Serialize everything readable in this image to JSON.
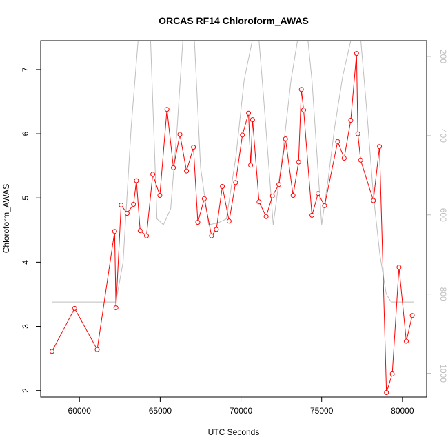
{
  "chart_data": {
    "type": "line",
    "title": "ORCAS RF14 Chloroform_AWAS",
    "xlabel": "UTC Seconds",
    "ylabel": "Chloroform_AWAS",
    "xlim": [
      57600,
      81500
    ],
    "ylim": [
      1.9,
      7.45
    ],
    "xticks": [
      60000,
      65000,
      70000,
      75000,
      80000
    ],
    "yticks": [
      2,
      3,
      4,
      5,
      6,
      7
    ],
    "y2lim": [
      1060,
      160
    ],
    "y2ticks": [
      200,
      400,
      600,
      800,
      1000
    ],
    "grid": false,
    "series": [
      {
        "role": "primary",
        "color": "#ff0000",
        "markers": "open-circle",
        "x": [
          58300,
          59700,
          61100,
          62180,
          62260,
          62580,
          62950,
          63350,
          63530,
          63760,
          64150,
          64540,
          64980,
          65420,
          65820,
          66220,
          66630,
          67060,
          67330,
          67730,
          68180,
          68480,
          68850,
          69270,
          69670,
          70090,
          70470,
          70600,
          70720,
          71120,
          71560,
          71950,
          72350,
          72760,
          73230,
          73570,
          73740,
          73880,
          74400,
          74780,
          75180,
          75990,
          76390,
          76800,
          77160,
          77240,
          77410,
          78200,
          78580,
          79010,
          79370,
          79790,
          80240,
          80610
        ],
        "values": [
          2.61,
          3.28,
          2.64,
          4.48,
          3.29,
          4.89,
          4.76,
          4.9,
          5.27,
          4.49,
          4.41,
          5.37,
          5.04,
          6.38,
          5.47,
          5.99,
          5.42,
          5.79,
          4.62,
          4.99,
          4.41,
          4.51,
          5.18,
          4.64,
          5.24,
          5.98,
          6.32,
          5.51,
          6.22,
          4.94,
          4.71,
          5.03,
          5.21,
          5.92,
          5.04,
          5.56,
          6.69,
          6.37,
          4.73,
          5.07,
          4.88,
          5.88,
          5.62,
          6.21,
          7.25,
          6.0,
          5.59,
          4.96,
          5.8,
          1.97,
          2.26,
          3.92,
          2.77,
          3.17
        ]
      },
      {
        "role": "secondary",
        "color": "#bebebe",
        "axis": "right",
        "x": [
          58300,
          60000,
          61500,
          62250,
          62700,
          63200,
          63750,
          64350,
          64800,
          65200,
          65650,
          66050,
          66500,
          67050,
          67500,
          68000,
          68600,
          69100,
          69700,
          70200,
          71000,
          71400,
          72000,
          72600,
          73100,
          73500,
          74000,
          74400,
          75000,
          75400,
          75800,
          76300,
          76800,
          77300,
          77800,
          78200,
          78600,
          79000,
          79300,
          80700
        ],
        "values": [
          820,
          820,
          820,
          820,
          720,
          380,
          100,
          100,
          610,
          625,
          585,
          380,
          100,
          100,
          480,
          625,
          620,
          610,
          450,
          260,
          100,
          300,
          625,
          440,
          260,
          160,
          100,
          260,
          625,
          510,
          380,
          250,
          160,
          100,
          340,
          550,
          700,
          800,
          820,
          820
        ]
      }
    ]
  }
}
